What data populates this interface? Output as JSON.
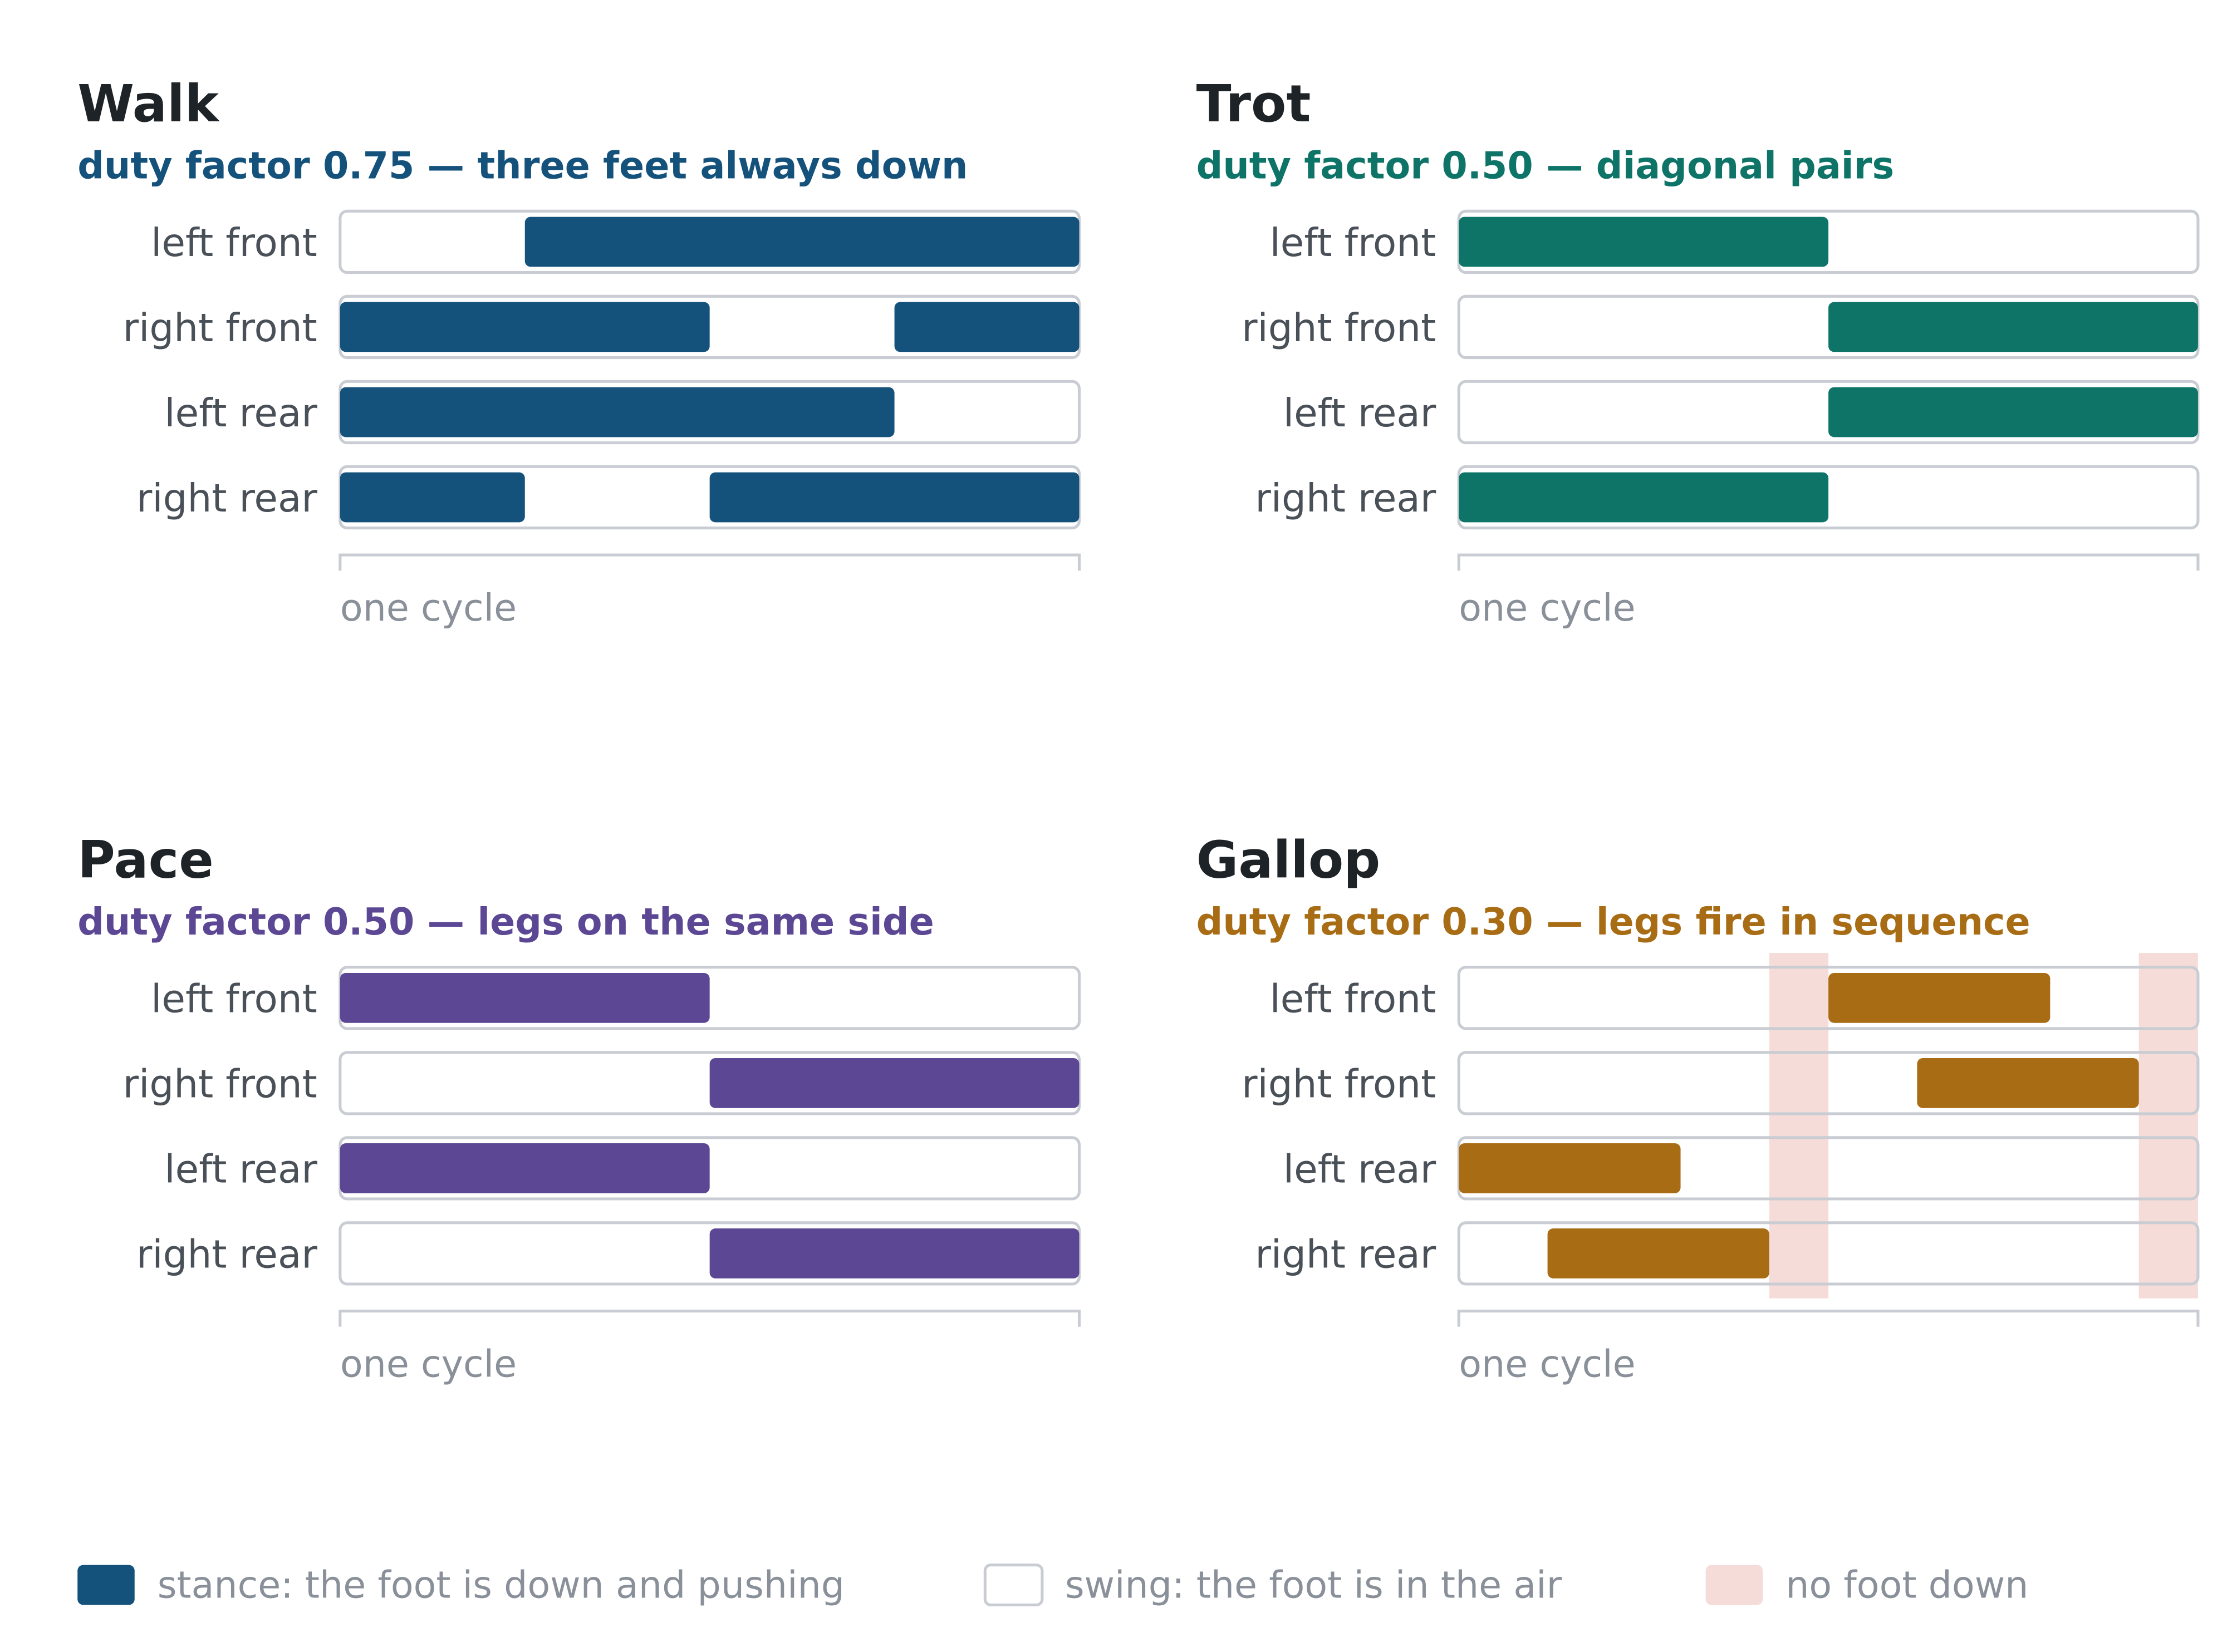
{
  "chart_data": {
    "type": "gait-diagram",
    "colors": {
      "track_border": "#c9cdd3",
      "no_foot_down": "#f5dcd8",
      "axis": "#c9cdd3"
    },
    "panels": [
      {
        "title": "Walk",
        "subtitle": "duty factor 0.75 — three feet always down",
        "color": "#14527c",
        "duty_factor": 0.75,
        "cycle_label": "one cycle",
        "no_foot_down": [],
        "legs": [
          {
            "name": "left front",
            "stance": [
              [
                0.25,
                1.0
              ]
            ]
          },
          {
            "name": "right front",
            "stance": [
              [
                0.0,
                0.5
              ],
              [
                0.75,
                1.0
              ]
            ]
          },
          {
            "name": "left rear",
            "stance": [
              [
                0.0,
                0.75
              ]
            ]
          },
          {
            "name": "right rear",
            "stance": [
              [
                0.0,
                0.25
              ],
              [
                0.5,
                1.0
              ]
            ]
          }
        ]
      },
      {
        "title": "Trot",
        "subtitle": "duty factor 0.50 — diagonal pairs",
        "color": "#0e7468",
        "duty_factor": 0.5,
        "cycle_label": "one cycle",
        "no_foot_down": [],
        "legs": [
          {
            "name": "left front",
            "stance": [
              [
                0.0,
                0.5
              ]
            ]
          },
          {
            "name": "right front",
            "stance": [
              [
                0.5,
                1.0
              ]
            ]
          },
          {
            "name": "left rear",
            "stance": [
              [
                0.5,
                1.0
              ]
            ]
          },
          {
            "name": "right rear",
            "stance": [
              [
                0.0,
                0.5
              ]
            ]
          }
        ]
      },
      {
        "title": "Pace",
        "subtitle": "duty factor 0.50 — legs on the same side",
        "color": "#5c4794",
        "duty_factor": 0.5,
        "cycle_label": "one cycle",
        "no_foot_down": [],
        "legs": [
          {
            "name": "left front",
            "stance": [
              [
                0.0,
                0.5
              ]
            ]
          },
          {
            "name": "right front",
            "stance": [
              [
                0.5,
                1.0
              ]
            ]
          },
          {
            "name": "left rear",
            "stance": [
              [
                0.0,
                0.5
              ]
            ]
          },
          {
            "name": "right rear",
            "stance": [
              [
                0.5,
                1.0
              ]
            ]
          }
        ]
      },
      {
        "title": "Gallop",
        "subtitle": "duty factor 0.30 — legs fire in sequence",
        "color": "#a86c14",
        "duty_factor": 0.3,
        "cycle_label": "one cycle",
        "no_foot_down": [
          [
            0.42,
            0.5
          ],
          [
            0.92,
            1.0
          ]
        ],
        "legs": [
          {
            "name": "left front",
            "stance": [
              [
                0.5,
                0.8
              ]
            ]
          },
          {
            "name": "right front",
            "stance": [
              [
                0.62,
                0.92
              ]
            ]
          },
          {
            "name": "left rear",
            "stance": [
              [
                0.0,
                0.3
              ]
            ]
          },
          {
            "name": "right rear",
            "stance": [
              [
                0.12,
                0.42
              ]
            ]
          }
        ]
      }
    ],
    "legend": [
      {
        "kind": "stance",
        "label": "stance: the foot is down and pushing",
        "color": "#14527c"
      },
      {
        "kind": "swing",
        "label": "swing: the foot is in the air",
        "color": "#ffffff"
      },
      {
        "kind": "no-foot-down",
        "label": "no foot down",
        "color": "#f5dcd8"
      }
    ]
  }
}
